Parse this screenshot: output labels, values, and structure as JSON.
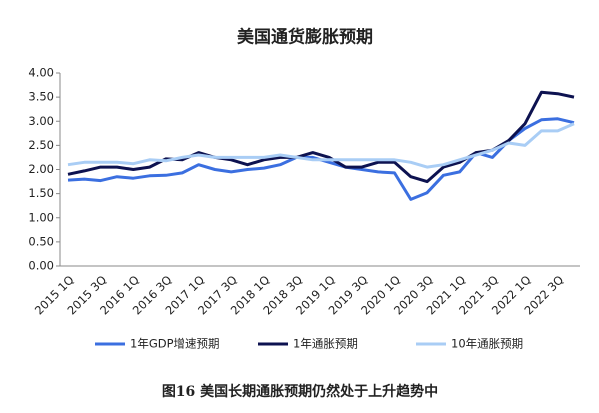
{
  "chart_data": {
    "type": "line",
    "title": "美国通货膨胀预期",
    "caption": "图16 美国长期通胀预期仍然处于上升趋势中",
    "categories": [
      "2015 1Q",
      null,
      "2015 3Q",
      null,
      "2016 1Q",
      null,
      "2016 3Q",
      null,
      "2017 1Q",
      null,
      "2017 3Q",
      null,
      "2018 1Q",
      null,
      "2018 3Q",
      null,
      "2019 1Q",
      null,
      "2019 3Q",
      null,
      "2020 1Q",
      null,
      "2020 3Q",
      null,
      "2021 1Q",
      null,
      "2021 3Q",
      null,
      "2022 1Q",
      null,
      "2022 3Q",
      null
    ],
    "series": [
      {
        "name": "1年GDP增速预期",
        "color": "#3b6fe0",
        "values": [
          1.78,
          1.8,
          1.77,
          1.85,
          1.82,
          1.87,
          1.88,
          1.93,
          2.1,
          2.0,
          1.95,
          2.0,
          2.03,
          2.1,
          2.25,
          2.25,
          2.15,
          2.05,
          2.0,
          1.95,
          1.93,
          1.38,
          1.52,
          1.88,
          1.95,
          2.35,
          2.25,
          2.6,
          2.85,
          3.03,
          3.05,
          2.97
        ]
      },
      {
        "name": "1年通胀预期",
        "color": "#0d1250",
        "values": [
          1.9,
          1.97,
          2.05,
          2.05,
          2.0,
          2.05,
          2.22,
          2.2,
          2.35,
          2.25,
          2.2,
          2.1,
          2.2,
          2.25,
          2.25,
          2.35,
          2.25,
          2.05,
          2.05,
          2.15,
          2.15,
          1.85,
          1.75,
          2.05,
          2.15,
          2.35,
          2.4,
          2.6,
          2.95,
          3.6,
          3.57,
          3.5
        ]
      },
      {
        "name": "10年通胀预期",
        "color": "#a9cdf5",
        "values": [
          2.1,
          2.15,
          2.15,
          2.15,
          2.12,
          2.2,
          2.18,
          2.25,
          2.3,
          2.25,
          2.25,
          2.25,
          2.25,
          2.3,
          2.25,
          2.2,
          2.2,
          2.2,
          2.2,
          2.2,
          2.2,
          2.15,
          2.05,
          2.1,
          2.2,
          2.3,
          2.4,
          2.55,
          2.5,
          2.8,
          2.8,
          2.95
        ]
      }
    ],
    "ylim": [
      0,
      4
    ],
    "yticks": [
      {
        "value": 0,
        "label": "0.00"
      },
      {
        "value": 0.5,
        "label": "0.50"
      },
      {
        "value": 1,
        "label": "1.00"
      },
      {
        "value": 1.5,
        "label": "1.50"
      },
      {
        "value": 2,
        "label": "2.00"
      },
      {
        "value": 2.5,
        "label": "2.50"
      },
      {
        "value": 3,
        "label": "3.00"
      },
      {
        "value": 3.5,
        "label": "3.50"
      },
      {
        "value": 4,
        "label": "4.00"
      }
    ],
    "grid": false,
    "legend": "bottom"
  }
}
